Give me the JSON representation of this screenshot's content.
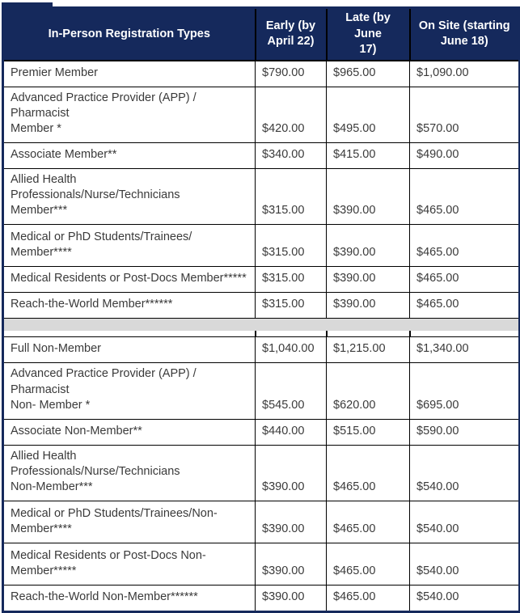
{
  "table": {
    "columns": [
      "In-Person Registration Types",
      "Early (by\nApril 22)",
      "Late (by June\n17)",
      "On Site (starting\nJune 18)"
    ],
    "member_rows": [
      {
        "label": "Premier Member",
        "early": "$790.00",
        "late": "$965.00",
        "onsite": "$1,090.00"
      },
      {
        "label": "Advanced Practice Provider (APP) / Pharmacist\nMember *",
        "early": "$420.00",
        "late": "$495.00",
        "onsite": "$570.00"
      },
      {
        "label": "Associate Member**",
        "early": "$340.00",
        "late": "$415.00",
        "onsite": "$490.00"
      },
      {
        "label": "Allied Health Professionals/Nurse/Technicians\nMember***",
        "early": "$315.00",
        "late": "$390.00",
        "onsite": "$465.00"
      },
      {
        "label": "Medical or PhD Students/Trainees/\nMember****",
        "early": "$315.00",
        "late": "$390.00",
        "onsite": "$465.00"
      },
      {
        "label": "Medical Residents or Post-Docs Member*****",
        "early": "$315.00",
        "late": "$390.00",
        "onsite": "$465.00"
      },
      {
        "label": "Reach-the-World Member******",
        "early": "$315.00",
        "late": "$390.00",
        "onsite": "$465.00"
      }
    ],
    "non_member_rows": [
      {
        "label": "Full Non-Member",
        "early": "$1,040.00",
        "late": "$1,215.00",
        "onsite": "$1,340.00"
      },
      {
        "label": "Advanced Practice Provider (APP) / Pharmacist\nNon- Member *",
        "early": "$545.00",
        "late": "$620.00",
        "onsite": "$695.00"
      },
      {
        "label": "Associate Non-Member**",
        "early": "$440.00",
        "late": "$515.00",
        "onsite": "$590.00"
      },
      {
        "label": "Allied Health Professionals/Nurse/Technicians\nNon-Member***",
        "early": "$390.00",
        "late": "$465.00",
        "onsite": "$540.00"
      },
      {
        "label": "Medical or PhD Students/Trainees/Non-\nMember****",
        "early": "$390.00",
        "late": "$465.00",
        "onsite": "$540.00"
      },
      {
        "label": "Medical Residents or Post-Docs Non-\nMember*****",
        "early": "$390.00",
        "late": "$465.00",
        "onsite": "$540.00"
      },
      {
        "label": "Reach-the-World Non-Member******",
        "early": "$390.00",
        "late": "$465.00",
        "onsite": "$540.00"
      }
    ]
  },
  "colors": {
    "header_bg": "#15295C",
    "header_text": "#FFFFFF",
    "body_text": "#3A3A3A",
    "grid_border": "#000000",
    "outer_border": "#15295C",
    "separator_bg": "#D9D9D9"
  }
}
